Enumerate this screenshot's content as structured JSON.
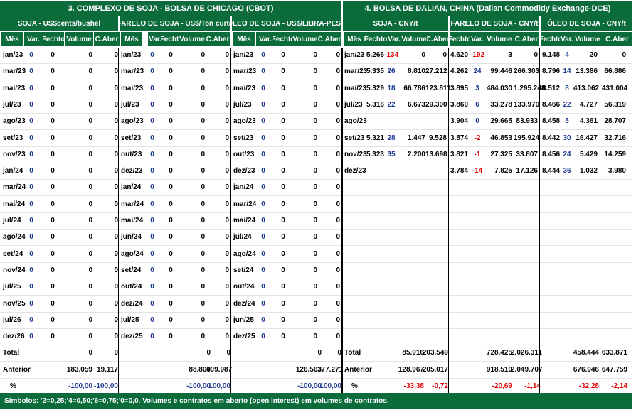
{
  "cbot": {
    "title": "3. COMPLEXO DE SOJA - BOLSA DE CHICAGO (CBOT)",
    "soja_title": "SOJA - US$cents/bushel",
    "farelo_title": "FARELO DE SOJA - US$/Ton curta",
    "oleo_title": "ÓLEO DE SOJA - US$/LIBRA-PESO",
    "col_headers": [
      "Mês",
      "Var.",
      "Fechto",
      "Volume",
      "C.Aber"
    ],
    "soja_rows": [
      [
        "jan/23",
        "0",
        "0",
        "0",
        "0"
      ],
      [
        "mar/23",
        "0",
        "0",
        "0",
        "0"
      ],
      [
        "mai/23",
        "0",
        "0",
        "0",
        "0"
      ],
      [
        "jul/23",
        "0",
        "0",
        "0",
        "0"
      ],
      [
        "ago/23",
        "0",
        "0",
        "0",
        "0"
      ],
      [
        "set/23",
        "0",
        "0",
        "0",
        "0"
      ],
      [
        "nov/23",
        "0",
        "0",
        "0",
        "0"
      ],
      [
        "jan/24",
        "0",
        "0",
        "0",
        "0"
      ],
      [
        "mar/24",
        "0",
        "0",
        "0",
        "0"
      ],
      [
        "mai/24",
        "0",
        "0",
        "0",
        "0"
      ],
      [
        "jul/24",
        "0",
        "0",
        "0",
        "0"
      ],
      [
        "ago/24",
        "0",
        "0",
        "0",
        "0"
      ],
      [
        "set/24",
        "0",
        "0",
        "0",
        "0"
      ],
      [
        "nov/24",
        "0",
        "0",
        "0",
        "0"
      ],
      [
        "jul/25",
        "0",
        "0",
        "0",
        "0"
      ],
      [
        "nov/25",
        "0",
        "0",
        "0",
        "0"
      ],
      [
        "jul/26",
        "0",
        "0",
        "0",
        "0"
      ],
      [
        "dez/26",
        "0",
        "0",
        "0",
        "0"
      ]
    ],
    "farelo_rows": [
      [
        "jan/23",
        "0",
        "0",
        "0",
        "0"
      ],
      [
        "mar/23",
        "0",
        "0",
        "0",
        "0"
      ],
      [
        "mai/23",
        "0",
        "0",
        "0",
        "0"
      ],
      [
        "jul/23",
        "0",
        "0",
        "0",
        "0"
      ],
      [
        "ago/23",
        "0",
        "0",
        "0",
        "0"
      ],
      [
        "set/23",
        "0",
        "0",
        "0",
        "0"
      ],
      [
        "out/23",
        "0",
        "0",
        "0",
        "0"
      ],
      [
        "dez/23",
        "0",
        "0",
        "0",
        "0"
      ],
      [
        "jan/24",
        "0",
        "0",
        "0",
        "0"
      ],
      [
        "mar/24",
        "0",
        "0",
        "0",
        "0"
      ],
      [
        "mai/24",
        "0",
        "0",
        "0",
        "0"
      ],
      [
        "jun/24",
        "0",
        "0",
        "0",
        "0"
      ],
      [
        "ago/24",
        "0",
        "0",
        "0",
        "0"
      ],
      [
        "set/24",
        "0",
        "0",
        "0",
        "0"
      ],
      [
        "out/24",
        "0",
        "0",
        "0",
        "0"
      ],
      [
        "dez/24",
        "0",
        "0",
        "0",
        "0"
      ],
      [
        "jul/25",
        "0",
        "0",
        "0",
        "0"
      ],
      [
        "dez/25",
        "0",
        "0",
        "0",
        "0"
      ]
    ],
    "oleo_rows": [
      [
        "jan/23",
        "0",
        "0",
        "0",
        "0"
      ],
      [
        "mar/23",
        "0",
        "0",
        "0",
        "0"
      ],
      [
        "mai/23",
        "0",
        "0",
        "0",
        "0"
      ],
      [
        "jul/23",
        "0",
        "0",
        "0",
        "0"
      ],
      [
        "ago/23",
        "0",
        "0",
        "0",
        "0"
      ],
      [
        "set/23",
        "0",
        "0",
        "0",
        "0"
      ],
      [
        "out/23",
        "0",
        "0",
        "0",
        "0"
      ],
      [
        "dez/23",
        "0",
        "0",
        "0",
        "0"
      ],
      [
        "jan/24",
        "0",
        "0",
        "0",
        "0"
      ],
      [
        "mar/24",
        "0",
        "0",
        "0",
        "0"
      ],
      [
        "mai/24",
        "0",
        "0",
        "0",
        "0"
      ],
      [
        "jul/24",
        "0",
        "0",
        "0",
        "0"
      ],
      [
        "ago/24",
        "0",
        "0",
        "0",
        "0"
      ],
      [
        "set/24",
        "0",
        "0",
        "0",
        "0"
      ],
      [
        "out/24",
        "0",
        "0",
        "0",
        "0"
      ],
      [
        "dez/24",
        "0",
        "0",
        "0",
        "0"
      ],
      [
        "jun/25",
        "0",
        "0",
        "0",
        "0"
      ],
      [
        "dez/25",
        "0",
        "0",
        "0",
        "0"
      ]
    ],
    "total_label": "Total",
    "anterior_label": "Anterior",
    "pct_label": "%",
    "soja_total": {
      "volume": "0",
      "caber": "0"
    },
    "farelo_total": {
      "volume": "0",
      "caber": "0"
    },
    "oleo_total": {
      "volume": "0",
      "caber": "0"
    },
    "soja_anterior": {
      "volume": "183.059",
      "caber": "19.117"
    },
    "farelo_anterior": {
      "volume": "88.809",
      "caber": "409.987"
    },
    "oleo_anterior": {
      "volume": "126.563",
      "caber": "377.271"
    },
    "soja_pct": {
      "volume": "-100,00",
      "caber": "-100,00"
    },
    "farelo_pct": {
      "volume": "-100,00",
      "caber": "-100,00"
    },
    "oleo_pct": {
      "volume": "-100,00",
      "caber": "-100,00"
    }
  },
  "dce": {
    "title": "4. BOLSA DE DALIAN, CHINA (Dalian Commodidy Exchange-DCE)",
    "soja_title": "SOJA - CNY/t",
    "farelo_title": "FARELO DE SOJA - CNY/t",
    "oleo_title": "ÓLEO DE SOJA - CNY/t",
    "soja_headers": [
      "Mês",
      "Fechto",
      "Var.",
      "Volume",
      "C.Aber"
    ],
    "other_headers": [
      "Fechto",
      "Var.",
      "Volume",
      "C.Aber"
    ],
    "months": [
      "jan/23",
      "mar/23",
      "mai/23",
      "jul/23",
      "ago/23",
      "set/23",
      "nov/23",
      "dez/23"
    ],
    "soja_rows": [
      [
        "5.266",
        "-134",
        "0",
        "0"
      ],
      [
        "5.335",
        "26",
        "8.810",
        "27.212"
      ],
      [
        "5.329",
        "18",
        "66.786",
        "123.811"
      ],
      [
        "5.316",
        "22",
        "6.673",
        "29.300"
      ],
      [
        "",
        "",
        "",
        ""
      ],
      [
        "5.321",
        "28",
        "1.447",
        "9.528"
      ],
      [
        "5.323",
        "35",
        "2.200",
        "13.698"
      ],
      [
        "",
        "",
        "",
        ""
      ]
    ],
    "farelo_rows": [
      [
        "4.620",
        "-192",
        "3",
        "0"
      ],
      [
        "4.262",
        "24",
        "99.446",
        "266.303"
      ],
      [
        "3.895",
        "3",
        "484.030",
        "1.295.248"
      ],
      [
        "3.860",
        "6",
        "33.278",
        "133.970"
      ],
      [
        "3.904",
        "0",
        "29.665",
        "83.933"
      ],
      [
        "3.874",
        "-2",
        "46.853",
        "195.924"
      ],
      [
        "3.821",
        "-1",
        "27.325",
        "33.807"
      ],
      [
        "3.784",
        "-14",
        "7.825",
        "17.126"
      ]
    ],
    "oleo_rows": [
      [
        "9.148",
        "4",
        "20",
        "0"
      ],
      [
        "8.796",
        "14",
        "13.386",
        "66.886"
      ],
      [
        "8.512",
        "8",
        "413.062",
        "431.004"
      ],
      [
        "8.466",
        "22",
        "4.727",
        "56.319"
      ],
      [
        "8.458",
        "8",
        "4.361",
        "28.707"
      ],
      [
        "8.442",
        "30",
        "16.427",
        "32.716"
      ],
      [
        "8.456",
        "24",
        "5.429",
        "14.259"
      ],
      [
        "8.444",
        "36",
        "1.032",
        "3.980"
      ]
    ],
    "total_label": "Total",
    "anterior_label": "Anterior",
    "pct_label": "%",
    "soja_total": {
      "volume": "85.916",
      "caber": "203.549"
    },
    "farelo_total": {
      "volume": "728.425",
      "caber": "2.026.311"
    },
    "oleo_total": {
      "volume": "458.444",
      "caber": "633.871"
    },
    "soja_anterior": {
      "volume": "128.967",
      "caber": "205.017"
    },
    "farelo_anterior": {
      "volume": "918.510",
      "caber": "2.049.707"
    },
    "oleo_anterior": {
      "volume": "676.946",
      "caber": "647.759"
    },
    "soja_pct": {
      "volume": "-33,38",
      "caber": "-0,72"
    },
    "farelo_pct": {
      "volume": "-20,69",
      "caber": "-1,14"
    },
    "oleo_pct": {
      "volume": "-32,28",
      "caber": "-2,14"
    }
  },
  "footer": "Símbolos: '2=0,25;'4=0,50;'6=0,75;'0=0,0. Volumes e contratos em aberto (open interest) em volumes de contratos.",
  "colors": {
    "header_bg": "#0b6b3a",
    "var_blue": "#1f3a93",
    "var_red": "#e00000"
  }
}
